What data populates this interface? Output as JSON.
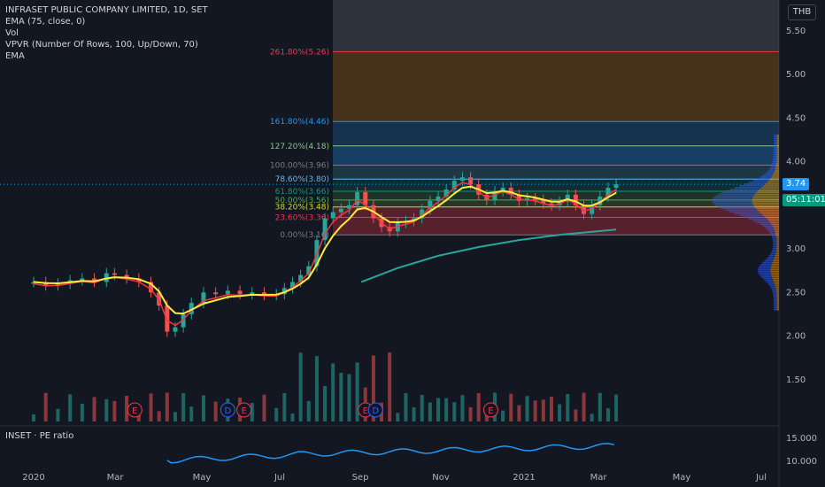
{
  "legend": {
    "title": "INFRASET PUBLIC COMPANY LIMITED, 1D, SET",
    "ema1": "EMA (75, close, 0)",
    "vol": "Vol",
    "vpvr": "VPVR (Number Of Rows, 100, Up/Down, 70)",
    "ema2": "EMA"
  },
  "currency_button": "THB",
  "last_price": "3.74",
  "countdown": "05:11:01",
  "pe_pane": {
    "label": "INSET · PE ratio",
    "y_ticks": [
      "15.000",
      "10.000"
    ]
  },
  "price_axis": {
    "ticks": [
      {
        "v": 5.5,
        "t": "5.50"
      },
      {
        "v": 5.0,
        "t": "5.00"
      },
      {
        "v": 4.5,
        "t": "4.50"
      },
      {
        "v": 4.0,
        "t": "4.00"
      },
      {
        "v": 3.0,
        "t": "3.00"
      },
      {
        "v": 2.5,
        "t": "2.50"
      },
      {
        "v": 2.0,
        "t": "2.00"
      },
      {
        "v": 1.5,
        "t": "1.50"
      }
    ]
  },
  "time_axis": [
    "2020",
    "Mar",
    "May",
    "Jul",
    "Sep",
    "Nov",
    "2021",
    "Mar",
    "May",
    "Jul"
  ],
  "fib_levels": [
    {
      "label": "261.80%(5.26)",
      "value": 5.26,
      "color": "#f23645"
    },
    {
      "label": "161.80%(4.46)",
      "value": 4.46,
      "color": "#2196f3"
    },
    {
      "label": "127.20%(4.18)",
      "value": 4.18,
      "color": "#81c784"
    },
    {
      "label": "100.00%(3.96)",
      "value": 3.96,
      "color": "#787b86"
    },
    {
      "label": "78.60%(3.80)",
      "value": 3.8,
      "color": "#64b5f6"
    },
    {
      "label": "61.80%(3.66)",
      "value": 3.66,
      "color": "#089981"
    },
    {
      "label": "50.00%(3.56)",
      "value": 3.56,
      "color": "#4caf50"
    },
    {
      "label": "38.20%(3.48)",
      "value": 3.48,
      "color": "#cddc39"
    },
    {
      "label": "23.60%(3.36)",
      "value": 3.36,
      "color": "#f23645"
    },
    {
      "label": "0.00%(3.16)",
      "value": 3.16,
      "color": "#787b86"
    }
  ],
  "event_markers": [
    {
      "letter": "E",
      "month": 2.5,
      "color": "#f23645"
    },
    {
      "letter": "D",
      "month": 4.8,
      "color": "#2962ff"
    },
    {
      "letter": "E",
      "month": 5.2,
      "color": "#f23645"
    },
    {
      "letter": "E",
      "month": 8.2,
      "color": "#f23645"
    },
    {
      "letter": "D",
      "month": 8.45,
      "color": "#2962ff"
    },
    {
      "letter": "E",
      "month": 11.3,
      "color": "#f23645"
    }
  ],
  "chart_data": {
    "type": "line",
    "series": [
      {
        "name": "INFRASET PUBLIC COMPANY LIMITED",
        "x_months": [
          0,
          0.3,
          0.6,
          0.9,
          1.2,
          1.5,
          1.8,
          2.0,
          2.3,
          2.6,
          2.9,
          3.1,
          3.3,
          3.5,
          3.7,
          3.9,
          4.2,
          4.5,
          4.8,
          5.1,
          5.4,
          5.7,
          6.0,
          6.2,
          6.4,
          6.6,
          6.8,
          7.0,
          7.2,
          7.4,
          7.6,
          7.8,
          8.0,
          8.2,
          8.4,
          8.6,
          8.8,
          9.0,
          9.2,
          9.4,
          9.6,
          9.8,
          10.0,
          10.2,
          10.4,
          10.6,
          10.8,
          11.0,
          11.2,
          11.4,
          11.6,
          11.8,
          12.0,
          12.2,
          12.4,
          12.6,
          12.8,
          13.0,
          13.2,
          13.4,
          13.6,
          13.8,
          14.0,
          14.2,
          14.4
        ],
        "close": [
          2.62,
          2.58,
          2.6,
          2.64,
          2.66,
          2.62,
          2.72,
          2.7,
          2.66,
          2.62,
          2.5,
          2.35,
          2.05,
          2.1,
          2.25,
          2.38,
          2.5,
          2.48,
          2.52,
          2.48,
          2.5,
          2.47,
          2.48,
          2.55,
          2.62,
          2.7,
          2.8,
          3.1,
          3.35,
          3.42,
          3.46,
          3.5,
          3.65,
          3.5,
          3.35,
          3.25,
          3.2,
          3.3,
          3.32,
          3.35,
          3.45,
          3.55,
          3.6,
          3.68,
          3.78,
          3.82,
          3.74,
          3.62,
          3.56,
          3.66,
          3.7,
          3.62,
          3.55,
          3.58,
          3.56,
          3.52,
          3.5,
          3.54,
          3.62,
          3.5,
          3.4,
          3.5,
          3.6,
          3.7,
          3.74
        ]
      },
      {
        "name": "EMA (75, close, 0)",
        "x_months": [
          8.1,
          9.0,
          10.0,
          11.0,
          12.0,
          13.0,
          14.4
        ],
        "values": [
          2.62,
          2.78,
          2.92,
          3.02,
          3.1,
          3.16,
          3.22
        ]
      }
    ],
    "pe_ratio_range": [
      10,
      15
    ],
    "ylim": [
      1.1,
      5.9
    ]
  }
}
